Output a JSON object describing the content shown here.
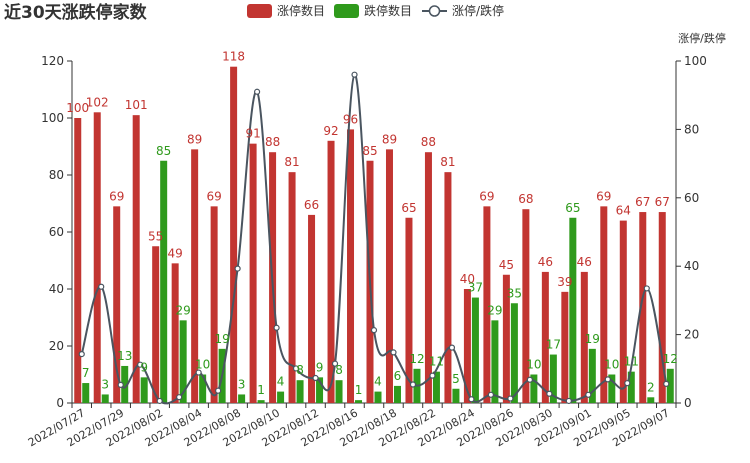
{
  "chart_data": {
    "type": "bar",
    "title": "近30天涨跌停家数",
    "right_axis_name": "涨停/跌停",
    "categories": [
      "2022/07/27",
      "2022/07/28",
      "2022/07/29",
      "2022/08/01",
      "2022/08/02",
      "2022/08/03",
      "2022/08/04",
      "2022/08/05",
      "2022/08/08",
      "2022/08/09",
      "2022/08/10",
      "2022/08/11",
      "2022/08/12",
      "2022/08/15",
      "2022/08/16",
      "2022/08/17",
      "2022/08/18",
      "2022/08/19",
      "2022/08/22",
      "2022/08/23",
      "2022/08/24",
      "2022/08/25",
      "2022/08/26",
      "2022/08/29",
      "2022/08/30",
      "2022/08/31",
      "2022/09/01",
      "2022/09/02",
      "2022/09/05",
      "2022/09/06",
      "2022/09/07"
    ],
    "shown_tick_labels": [
      "2022/07/27",
      "2022/07/29",
      "2022/08/02",
      "2022/08/04",
      "2022/08/08",
      "2022/08/10",
      "2022/08/12",
      "2022/08/16",
      "2022/08/18",
      "2022/08/22",
      "2022/08/24",
      "2022/08/26",
      "2022/08/30",
      "2022/09/01",
      "2022/09/05",
      "2022/09/07"
    ],
    "series": [
      {
        "name": "涨停数目",
        "type": "bar",
        "axis": "left",
        "color": "#c23531",
        "values": [
          100,
          102,
          69,
          101,
          55,
          49,
          89,
          69,
          118,
          91,
          88,
          81,
          66,
          92,
          96,
          85,
          89,
          65,
          88,
          81,
          40,
          69,
          45,
          68,
          46,
          39,
          46,
          69,
          64,
          67,
          67
        ]
      },
      {
        "name": "跌停数目",
        "type": "bar",
        "axis": "left",
        "color": "#2f9a1c",
        "values": [
          7,
          3,
          13,
          9,
          85,
          29,
          10,
          19,
          3,
          1,
          4,
          8,
          9,
          8,
          1,
          4,
          6,
          12,
          11,
          5,
          37,
          29,
          35,
          10,
          17,
          65,
          19,
          10,
          11,
          2,
          12
        ]
      },
      {
        "name": "涨停/跌停",
        "type": "line",
        "axis": "right",
        "smooth": true,
        "color": "#4a5560",
        "values": [
          14.3,
          34,
          5.3,
          11.2,
          0.6,
          1.7,
          8.9,
          3.6,
          39.3,
          91,
          22,
          10.1,
          7.3,
          11.5,
          96,
          21.3,
          14.8,
          5.4,
          8,
          16.2,
          1.1,
          2.4,
          1.3,
          6.8,
          2.7,
          0.6,
          2.4,
          6.9,
          5.8,
          33.5,
          5.6
        ]
      }
    ],
    "left_axis": {
      "min": 0,
      "max": 120,
      "ticks": [
        0,
        20,
        40,
        60,
        80,
        100,
        120
      ]
    },
    "right_axis": {
      "min": 0,
      "max": 100,
      "ticks": [
        0,
        20,
        40,
        60,
        80,
        100
      ]
    },
    "legend_position": "top-center",
    "grid": false
  }
}
